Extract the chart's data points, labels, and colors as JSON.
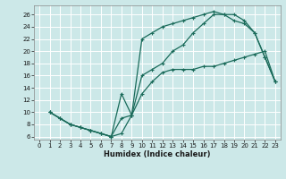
{
  "xlabel": "Humidex (Indice chaleur)",
  "ylabel": "",
  "bg_color": "#cce8e8",
  "grid_color": "#ffffff",
  "line_color": "#1a6b5a",
  "xlim": [
    -0.5,
    23.5
  ],
  "ylim": [
    5.5,
    27.5
  ],
  "xticks": [
    0,
    1,
    2,
    3,
    4,
    5,
    6,
    7,
    8,
    9,
    10,
    11,
    12,
    13,
    14,
    15,
    16,
    17,
    18,
    19,
    20,
    21,
    22,
    23
  ],
  "yticks": [
    6,
    8,
    10,
    12,
    14,
    16,
    18,
    20,
    22,
    24,
    26
  ],
  "line1_x": [
    1,
    2,
    3,
    4,
    5,
    6,
    7,
    8,
    9,
    10,
    11,
    12,
    13,
    14,
    15,
    16,
    17,
    18,
    19,
    20,
    21,
    22,
    23
  ],
  "line1_y": [
    10,
    9,
    8,
    7.5,
    7,
    6.5,
    6,
    6.5,
    9.5,
    13,
    15,
    16.5,
    17,
    17,
    17,
    17.5,
    17.5,
    18,
    18.5,
    19,
    19.5,
    20,
    15
  ],
  "line2_x": [
    1,
    2,
    3,
    4,
    5,
    6,
    7,
    8,
    9,
    10,
    11,
    12,
    13,
    14,
    15,
    16,
    17,
    18,
    19,
    20,
    21,
    22,
    23
  ],
  "line2_y": [
    10,
    9,
    8,
    7.5,
    7,
    6.5,
    6,
    9,
    9.5,
    16,
    17,
    18,
    20,
    21,
    23,
    24.5,
    26,
    26,
    25,
    24.5,
    23,
    19,
    15
  ],
  "line3_x": [
    1,
    2,
    3,
    4,
    5,
    6,
    7,
    8,
    9,
    10,
    11,
    12,
    13,
    14,
    15,
    16,
    17,
    18,
    19,
    20,
    21,
    22,
    23
  ],
  "line3_y": [
    10,
    9,
    8,
    7.5,
    7,
    6.5,
    6,
    13,
    9.5,
    22,
    23,
    24,
    24.5,
    25,
    25.5,
    26,
    26.5,
    26,
    26,
    25,
    23,
    19,
    15
  ],
  "xlabel_fontsize": 6,
  "tick_fontsize": 5
}
